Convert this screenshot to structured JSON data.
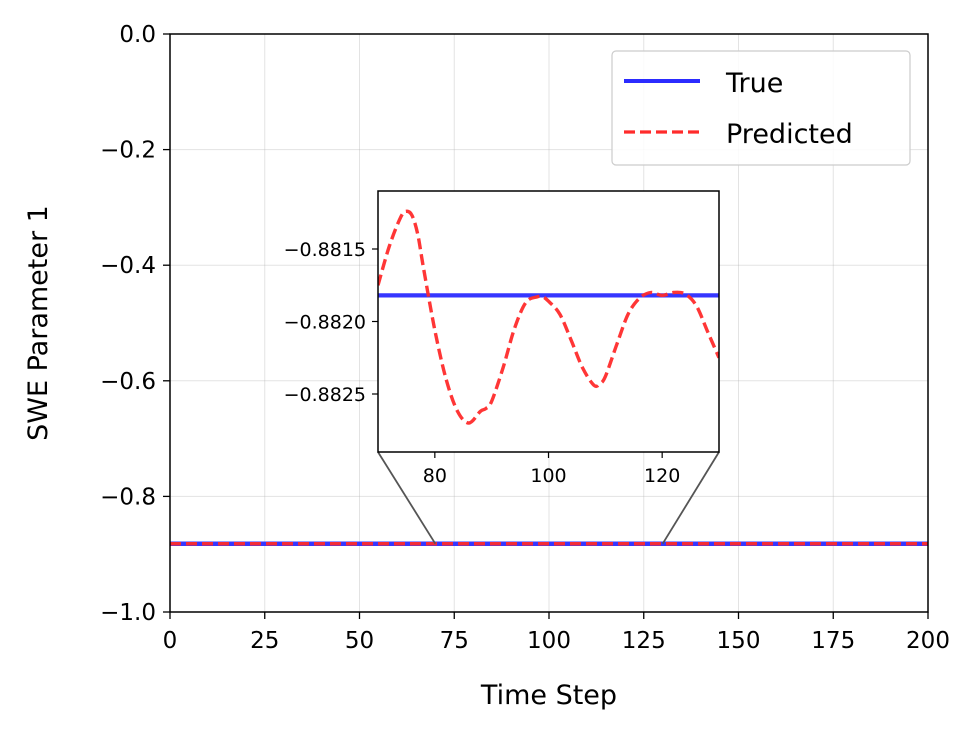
{
  "chart_data": {
    "type": "line",
    "xlabel": "Time Step",
    "ylabel": "SWE Parameter 1",
    "xlim": [
      0,
      200
    ],
    "ylim": [
      -1.0,
      0.0
    ],
    "xticks": [
      0,
      25,
      50,
      75,
      100,
      125,
      150,
      175,
      200
    ],
    "xtick_labels": [
      "0",
      "25",
      "50",
      "75",
      "100",
      "125",
      "150",
      "175",
      "200"
    ],
    "yticks": [
      0.0,
      -0.2,
      -0.4,
      -0.6,
      -0.8,
      -1.0
    ],
    "ytick_labels": [
      "0.0",
      "−0.2",
      "−0.4",
      "−0.6",
      "−0.8",
      "−1.0"
    ],
    "grid": true,
    "legend_position": "top-right",
    "series": [
      {
        "name": "True",
        "color": "#2b2bff",
        "style": "solid",
        "x": [
          0,
          200
        ],
        "y": [
          -0.88182,
          -0.88182
        ]
      },
      {
        "name": "Predicted",
        "color": "#ff2b2b",
        "style": "dashed",
        "x": [
          0,
          200
        ],
        "y": [
          -0.8819,
          -0.8819
        ]
      }
    ],
    "inset": {
      "xlim": [
        70,
        130
      ],
      "ylim": [
        -0.8829,
        -0.8811
      ],
      "xticks": [
        80,
        100,
        120
      ],
      "xtick_labels": [
        "80",
        "100",
        "120"
      ],
      "yticks": [
        -0.8815,
        -0.882,
        -0.8825
      ],
      "ytick_labels": [
        "−0.8815",
        "−0.8820",
        "−0.8825"
      ],
      "series": [
        {
          "name": "True",
          "color": "#2b2bff",
          "style": "solid",
          "x": [
            70,
            130
          ],
          "y": [
            -0.88182,
            -0.88182
          ]
        },
        {
          "name": "Predicted",
          "color": "#ff2b2b",
          "style": "dashed",
          "x": [
            70,
            72,
            74,
            75,
            76,
            77,
            78,
            80,
            82,
            84,
            86,
            88,
            89,
            90,
            92,
            94,
            96,
            98,
            99,
            100,
            102,
            104,
            106,
            108,
            109,
            110,
            112,
            114,
            116,
            118,
            120,
            122,
            124,
            126,
            128,
            130
          ],
          "y": [
            -0.88175,
            -0.88148,
            -0.88128,
            -0.88124,
            -0.88127,
            -0.8814,
            -0.88163,
            -0.88206,
            -0.8824,
            -0.88262,
            -0.8827,
            -0.88262,
            -0.8826,
            -0.88255,
            -0.88232,
            -0.88205,
            -0.88187,
            -0.88183,
            -0.88183,
            -0.88186,
            -0.88195,
            -0.88213,
            -0.88232,
            -0.88244,
            -0.88243,
            -0.88238,
            -0.88216,
            -0.88195,
            -0.88184,
            -0.8818,
            -0.88182,
            -0.8818,
            -0.88181,
            -0.88189,
            -0.88207,
            -0.88225
          ]
        }
      ]
    }
  }
}
